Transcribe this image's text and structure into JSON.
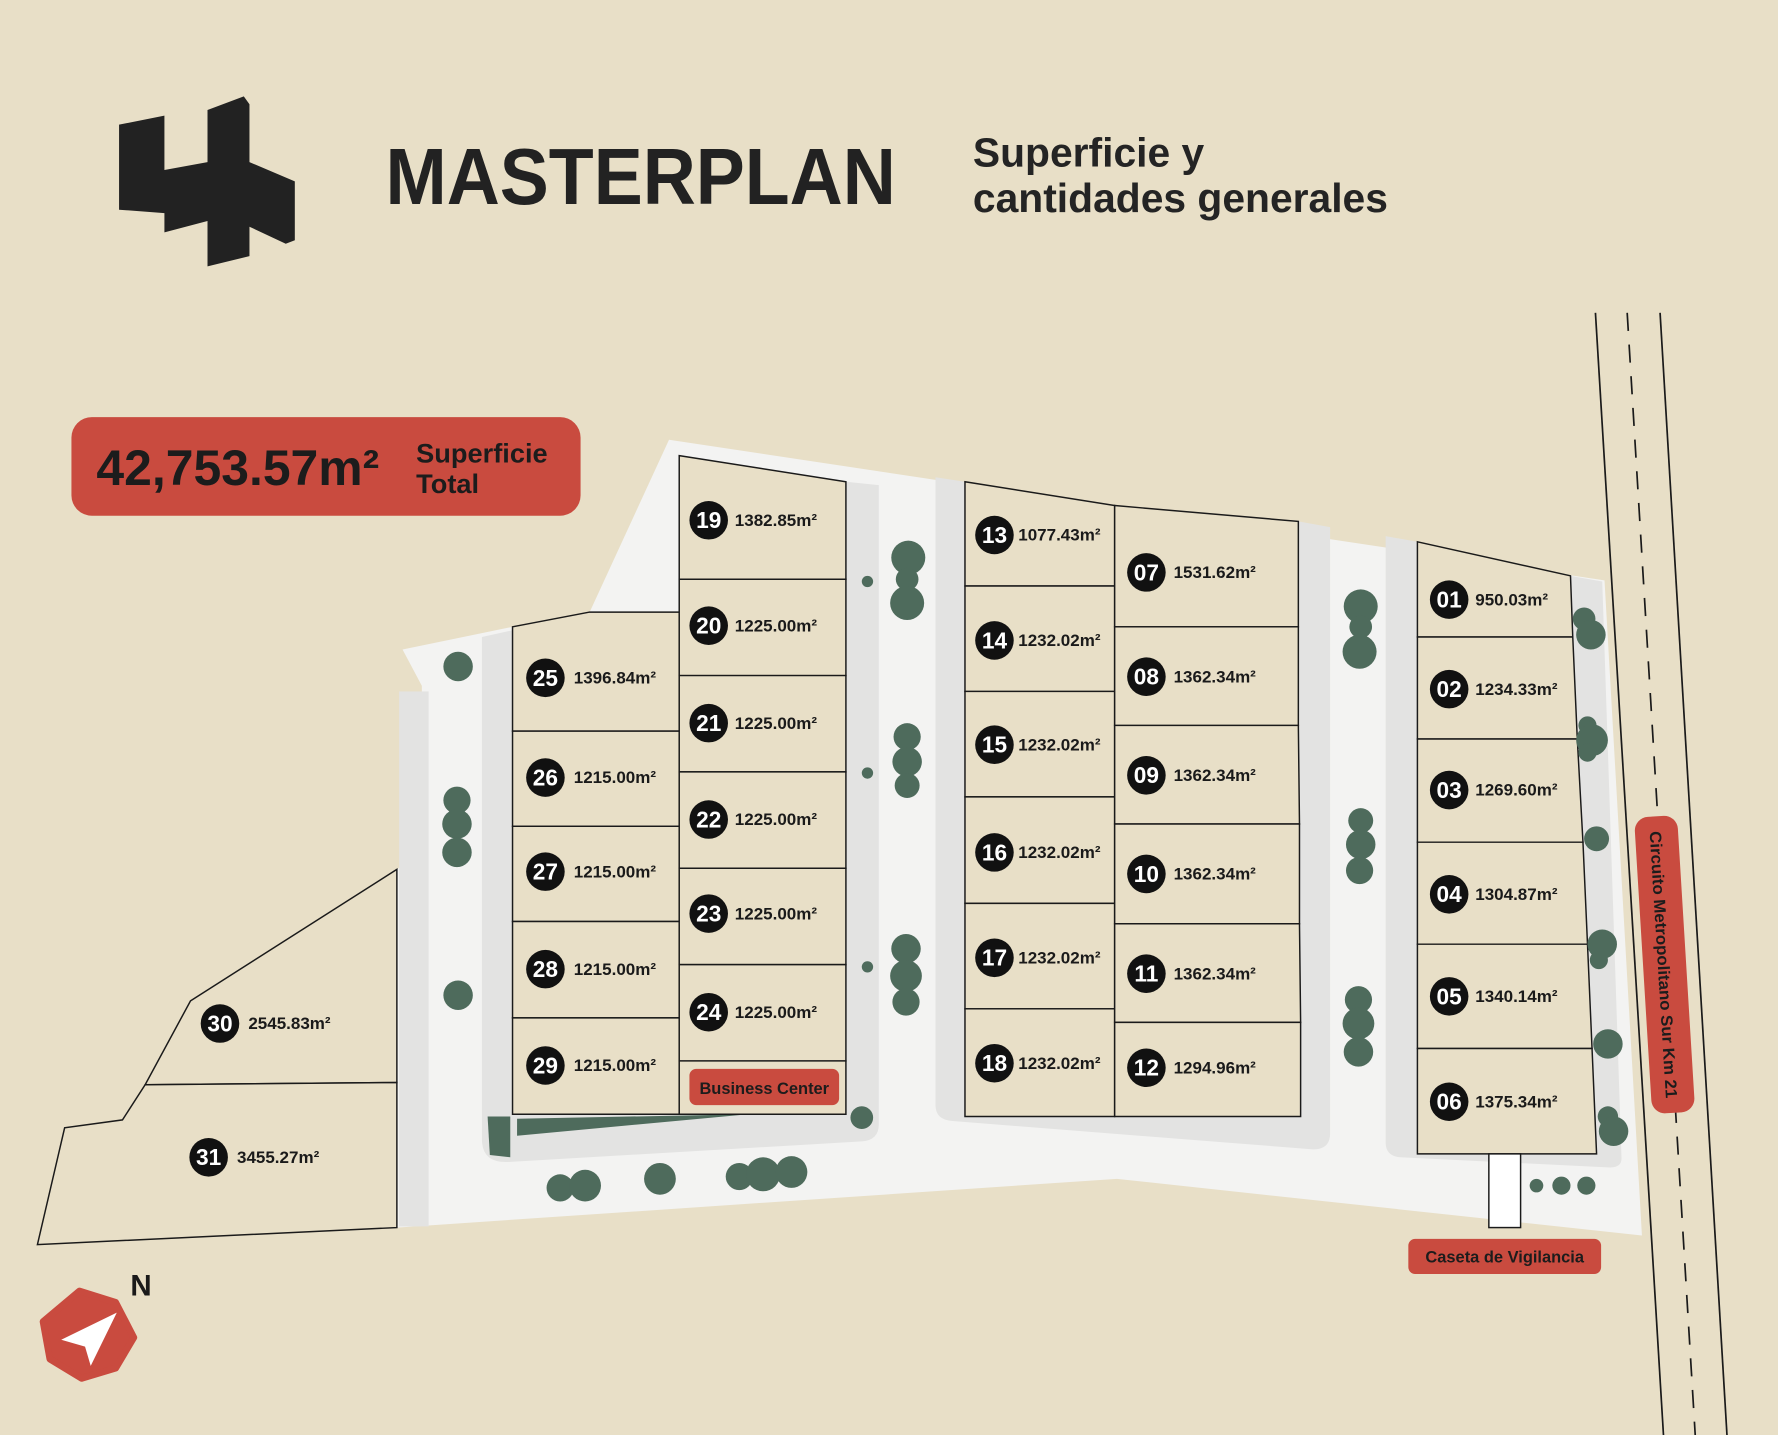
{
  "header": {
    "title": "MASTERPLAN",
    "subtitle_line1": "Superficie y",
    "subtitle_line2": "cantidades generales"
  },
  "total": {
    "value": "42,753.57m²",
    "label_line1": "Superficie",
    "label_line2": "Total"
  },
  "lots": [
    {
      "number": "01",
      "area": "950.03m²"
    },
    {
      "number": "02",
      "area": "1234.33m²"
    },
    {
      "number": "03",
      "area": "1269.60m²"
    },
    {
      "number": "04",
      "area": "1304.87m²"
    },
    {
      "number": "05",
      "area": "1340.14m²"
    },
    {
      "number": "06",
      "area": "1375.34m²"
    },
    {
      "number": "07",
      "area": "1531.62m²"
    },
    {
      "number": "08",
      "area": "1362.34m²"
    },
    {
      "number": "09",
      "area": "1362.34m²"
    },
    {
      "number": "10",
      "area": "1362.34m²"
    },
    {
      "number": "11",
      "area": "1362.34m²"
    },
    {
      "number": "12",
      "area": "1294.96m²"
    },
    {
      "number": "13",
      "area": "1077.43m²"
    },
    {
      "number": "14",
      "area": "1232.02m²"
    },
    {
      "number": "15",
      "area": "1232.02m²"
    },
    {
      "number": "16",
      "area": "1232.02m²"
    },
    {
      "number": "17",
      "area": "1232.02m²"
    },
    {
      "number": "18",
      "area": "1232.02m²"
    },
    {
      "number": "19",
      "area": "1382.85m²"
    },
    {
      "number": "20",
      "area": "1225.00m²"
    },
    {
      "number": "21",
      "area": "1225.00m²"
    },
    {
      "number": "22",
      "area": "1225.00m²"
    },
    {
      "number": "23",
      "area": "1225.00m²"
    },
    {
      "number": "24",
      "area": "1225.00m²"
    },
    {
      "number": "25",
      "area": "1396.84m²"
    },
    {
      "number": "26",
      "area": "1215.00m²"
    },
    {
      "number": "27",
      "area": "1215.00m²"
    },
    {
      "number": "28",
      "area": "1215.00m²"
    },
    {
      "number": "29",
      "area": "1215.00m²"
    },
    {
      "number": "30",
      "area": "2545.83m²"
    },
    {
      "number": "31",
      "area": "3455.27m²"
    }
  ],
  "labels": {
    "business_center": "Business Center",
    "guard_house": "Caseta de Vigilancia",
    "road": "Circuito Metropolitano Sur Km 21",
    "north": "N"
  },
  "icons": {
    "logo": "h-monogram-logo",
    "north_arrow": "navigation-arrow-icon"
  },
  "colors": {
    "background": "#E8DFC7",
    "accent_red": "#C94B3F",
    "tree_green": "#4E6B5C",
    "site_gray": "#F3F3F2",
    "text_dark": "#1a1a1a"
  }
}
